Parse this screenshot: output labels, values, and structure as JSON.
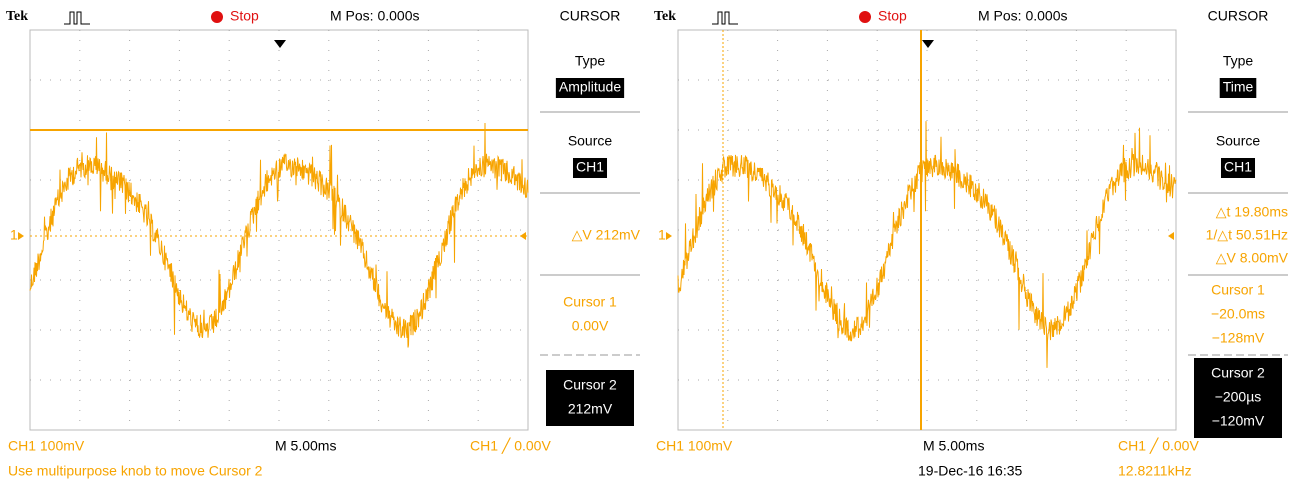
{
  "screens": [
    {
      "brand": "Tek",
      "status": "Stop",
      "m_pos": "M Pos: 0.000s",
      "menu_title": "CURSOR",
      "channel_marker": "1",
      "menu": {
        "type": {
          "title": "Type",
          "value": "Amplitude"
        },
        "source": {
          "title": "Source",
          "value": "CH1"
        },
        "readouts": [
          "△V 212mV"
        ],
        "cursor1": {
          "title": "Cursor 1",
          "values": [
            "0.00V"
          ]
        },
        "cursor2": {
          "title": "Cursor 2",
          "values": [
            "212mV"
          ]
        }
      },
      "footer": {
        "channel": "CH1  100mV",
        "timebase": "M 5.00ms",
        "trigger": "CH1 ╱ 0.00V",
        "message": "Use multipurpose knob to move Cursor 2"
      }
    },
    {
      "brand": "Tek",
      "status": "Stop",
      "m_pos": "M Pos: 0.000s",
      "menu_title": "CURSOR",
      "channel_marker": "1",
      "menu": {
        "type": {
          "title": "Type",
          "value": "Time"
        },
        "source": {
          "title": "Source",
          "value": "CH1"
        },
        "readouts": [
          "△t 19.80ms",
          "1/△t 50.51Hz",
          "△V 8.00mV"
        ],
        "cursor1": {
          "title": "Cursor 1",
          "values": [
            "−20.0ms",
            "−128mV"
          ]
        },
        "cursor2": {
          "title": "Cursor 2",
          "values": [
            "−200µs",
            "−120mV"
          ]
        }
      },
      "footer": {
        "channel": "CH1  100mV",
        "timebase": "M 5.00ms",
        "trigger": "CH1 ╱ 0.00V",
        "date": "19-Dec-16 16:35",
        "frequency": "12.8211kHz"
      }
    }
  ]
}
